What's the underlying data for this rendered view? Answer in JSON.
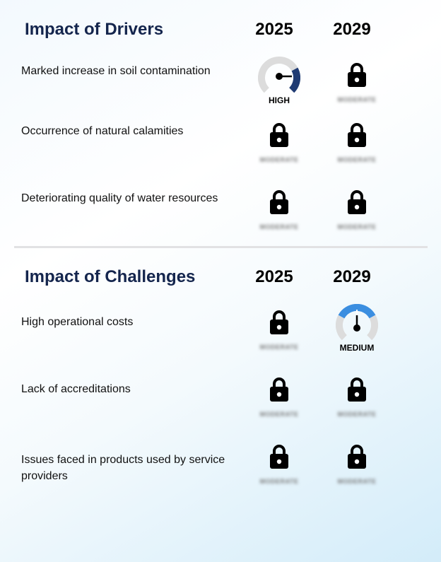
{
  "drivers": {
    "title": "Impact of Drivers",
    "year1": "2025",
    "year2": "2029",
    "rows": [
      {
        "label": "Marked increase in soil contamination",
        "y2025": {
          "kind": "gauge",
          "level": "HIGH"
        },
        "y2029": {
          "kind": "locked",
          "hidden_text": "MODERATE"
        }
      },
      {
        "label": "Occurrence of natural calamities",
        "y2025": {
          "kind": "locked",
          "hidden_text": "MODERATE"
        },
        "y2029": {
          "kind": "locked",
          "hidden_text": "MODERATE"
        }
      },
      {
        "label": "Deteriorating quality of water resources",
        "y2025": {
          "kind": "locked",
          "hidden_text": "MODERATE"
        },
        "y2029": {
          "kind": "locked",
          "hidden_text": "MODERATE"
        }
      }
    ]
  },
  "challenges": {
    "title": "Impact of Challenges",
    "year1": "2025",
    "year2": "2029",
    "rows": [
      {
        "label": "High operational costs",
        "y2025": {
          "kind": "locked",
          "hidden_text": "MODERATE"
        },
        "y2029": {
          "kind": "gauge",
          "level": "MEDIUM"
        }
      },
      {
        "label": "Lack of accreditations",
        "y2025": {
          "kind": "locked",
          "hidden_text": "MODERATE"
        },
        "y2029": {
          "kind": "locked",
          "hidden_text": "MODERATE"
        }
      },
      {
        "label": "Issues faced in products used by service providers",
        "y2025": {
          "kind": "locked",
          "hidden_text": "MODERATE"
        },
        "y2029": {
          "kind": "locked",
          "hidden_text": "MODERATE"
        }
      }
    ]
  },
  "colors": {
    "title": "#14254d",
    "gauge_high": "#1f3b73",
    "gauge_medium": "#3b8ee0",
    "gauge_track": "#dcdcdc"
  },
  "icons": {
    "locked_cell": "lock-icon",
    "gauge_cell": "gauge-icon"
  }
}
